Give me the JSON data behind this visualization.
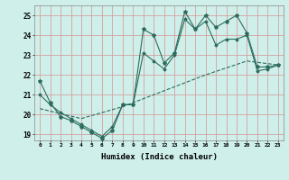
{
  "title": "",
  "xlabel": "Humidex (Indice chaleur)",
  "bg_color": "#cff0ea",
  "line_color": "#2d6b5e",
  "grid_color": "#d4a0a0",
  "xlim": [
    -0.5,
    23.5
  ],
  "ylim": [
    18.7,
    25.5
  ],
  "xticks": [
    0,
    1,
    2,
    3,
    4,
    5,
    6,
    7,
    8,
    9,
    10,
    11,
    12,
    13,
    14,
    15,
    16,
    17,
    18,
    19,
    20,
    21,
    22,
    23
  ],
  "yticks": [
    19,
    20,
    21,
    22,
    23,
    24,
    25
  ],
  "line1_x": [
    0,
    1,
    2,
    3,
    4,
    5,
    6,
    7,
    8,
    9,
    10,
    11,
    12,
    13,
    14,
    15,
    16,
    17,
    18,
    19,
    20,
    21,
    22,
    23
  ],
  "line1_y": [
    21.7,
    20.6,
    19.9,
    19.7,
    19.4,
    19.1,
    18.8,
    19.2,
    20.5,
    20.5,
    24.3,
    24.0,
    22.6,
    23.1,
    25.2,
    24.3,
    25.0,
    24.4,
    24.7,
    25.0,
    24.1,
    22.4,
    22.4,
    22.5
  ],
  "line2_x": [
    0,
    1,
    2,
    3,
    4,
    5,
    6,
    7,
    8,
    9,
    10,
    11,
    12,
    13,
    14,
    15,
    16,
    17,
    18,
    19,
    20,
    21,
    22,
    23
  ],
  "line2_y": [
    21.0,
    20.5,
    20.1,
    19.8,
    19.5,
    19.2,
    18.9,
    19.4,
    20.5,
    20.5,
    23.1,
    22.7,
    22.3,
    23.0,
    24.8,
    24.3,
    24.7,
    23.5,
    23.8,
    23.8,
    24.0,
    22.2,
    22.3,
    22.5
  ],
  "line3_x": [
    0,
    4,
    8,
    12,
    16,
    20,
    23
  ],
  "line3_y": [
    20.3,
    19.8,
    20.4,
    21.2,
    22.0,
    22.7,
    22.5
  ]
}
